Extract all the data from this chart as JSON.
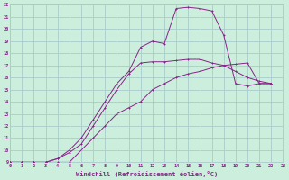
{
  "xlabel": "Windchill (Refroidissement éolien,°C)",
  "bg_color": "#cceedd",
  "grid_color": "#aacccc",
  "line_color": "#882288",
  "xlim": [
    0,
    23
  ],
  "ylim": [
    9,
    22
  ],
  "xticks": [
    0,
    1,
    2,
    3,
    4,
    5,
    6,
    7,
    8,
    9,
    10,
    11,
    12,
    13,
    14,
    15,
    16,
    17,
    18,
    19,
    20,
    21,
    22,
    23
  ],
  "yticks": [
    9,
    10,
    11,
    12,
    13,
    14,
    15,
    16,
    17,
    18,
    19,
    20,
    21,
    22
  ],
  "line1_x": [
    0,
    1,
    2,
    3,
    4,
    5,
    7,
    8,
    9,
    10,
    11,
    12,
    13,
    14,
    15,
    16,
    17,
    18,
    19,
    20,
    21,
    22
  ],
  "line1_y": [
    9,
    9,
    9,
    9,
    9,
    9,
    11,
    12,
    13,
    13.5,
    14,
    15,
    15.5,
    16,
    16.3,
    16.5,
    16.8,
    17.0,
    17.1,
    17.2,
    15.5,
    15.5
  ],
  "line2_x": [
    0,
    1,
    2,
    3,
    4,
    5,
    6,
    7,
    8,
    9,
    10,
    11,
    12,
    13,
    14,
    15,
    16,
    17,
    18,
    19,
    20,
    21,
    22
  ],
  "line2_y": [
    9,
    9,
    9,
    9,
    9.3,
    9.8,
    10.5,
    12,
    13.5,
    15,
    16.3,
    17.2,
    17.3,
    17.3,
    17.4,
    17.5,
    17.5,
    17.2,
    17.0,
    16.5,
    16.0,
    15.7,
    15.5
  ],
  "line3_x": [
    0,
    1,
    2,
    3,
    4,
    5,
    6,
    7,
    8,
    9,
    10,
    11,
    12,
    13,
    14,
    15,
    16,
    17,
    18,
    19,
    20,
    21,
    22
  ],
  "line3_y": [
    9,
    9,
    9,
    9,
    9.3,
    10.0,
    11.0,
    12.5,
    14.0,
    15.5,
    16.5,
    18.5,
    19.0,
    18.8,
    21.7,
    21.8,
    21.7,
    21.5,
    19.5,
    15.5,
    15.3,
    15.5,
    15.5
  ]
}
